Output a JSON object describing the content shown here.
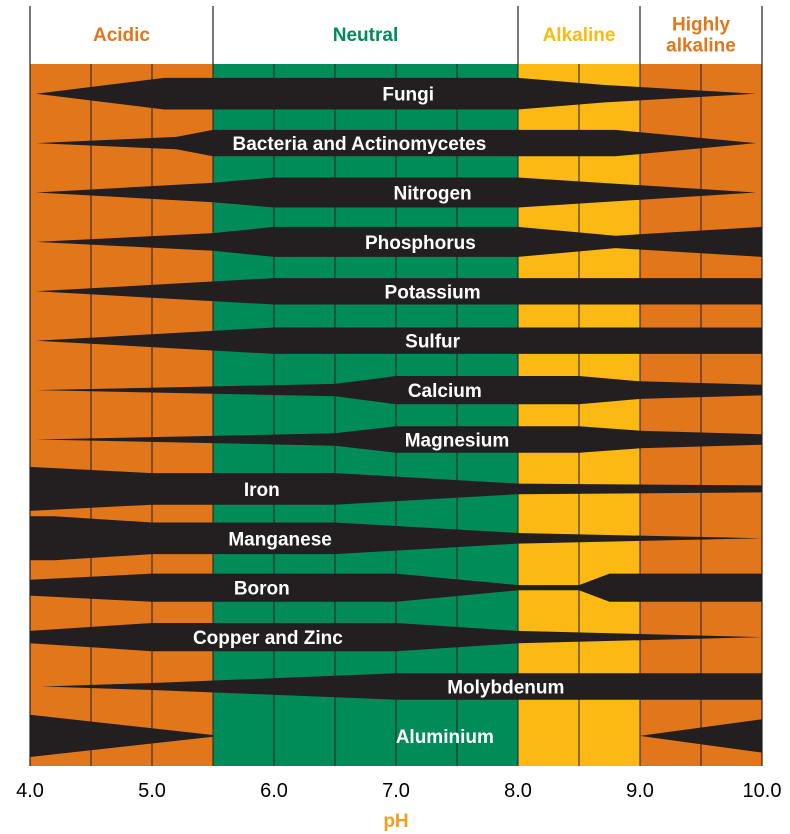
{
  "chart_data": {
    "type": "bar",
    "xlabel": "pH",
    "xlim": [
      4.0,
      10.0
    ],
    "ticks": [
      "4.0",
      "5.0",
      "6.0",
      "7.0",
      "8.0",
      "9.0",
      "10.0"
    ],
    "tick_values": [
      4.0,
      5.0,
      6.0,
      7.0,
      8.0,
      9.0,
      10.0
    ],
    "gridlines": [
      4.5,
      5.0,
      5.5,
      6.0,
      6.5,
      7.0,
      7.5,
      8.0,
      8.5,
      9.0,
      9.5
    ],
    "zones": [
      {
        "name": "Acidic",
        "from": 4.0,
        "to": 5.5,
        "color": "#e2761b",
        "title_color": "#e2761b"
      },
      {
        "name": "Neutral",
        "from": 5.5,
        "to": 8.0,
        "color": "#008c59",
        "title_color": "#008c59"
      },
      {
        "name": "Alkaline",
        "from": 8.0,
        "to": 9.0,
        "color": "#fdb913",
        "title_color": "#fdb913"
      },
      {
        "name": "Highly\nalkaline",
        "from": 9.0,
        "to": 10.0,
        "color": "#e2761b",
        "title_color": "#e2761b"
      }
    ],
    "bar_color": "#231f20",
    "axis_title_color": "#f0a020",
    "series": [
      {
        "name": "Fungi",
        "label_at": 7.1,
        "profile": [
          [
            4.05,
            0
          ],
          [
            5.1,
            0.36
          ],
          [
            8.0,
            0.36
          ],
          [
            8.7,
            0.2
          ],
          [
            9.95,
            0
          ]
        ]
      },
      {
        "name": "Bacteria and Actinomycetes",
        "label_at": 6.7,
        "profile": [
          [
            4.05,
            0
          ],
          [
            5.2,
            0.14
          ],
          [
            5.5,
            0.3
          ],
          [
            7.5,
            0.3
          ],
          [
            8.5,
            0.3
          ],
          [
            8.8,
            0.3
          ],
          [
            9.95,
            0
          ]
        ]
      },
      {
        "name": "Nitrogen",
        "label_at": 7.3,
        "profile": [
          [
            4.05,
            0
          ],
          [
            5.5,
            0.22
          ],
          [
            6.0,
            0.34
          ],
          [
            8.0,
            0.34
          ],
          [
            8.8,
            0.2
          ],
          [
            9.95,
            0
          ]
        ]
      },
      {
        "name": "Phosphorus",
        "label_at": 7.2,
        "profile": [
          [
            4.05,
            0
          ],
          [
            5.5,
            0.2
          ],
          [
            6.0,
            0.34
          ],
          [
            8.0,
            0.34
          ],
          [
            8.8,
            0.14
          ],
          [
            10.0,
            0.34
          ]
        ]
      },
      {
        "name": "Potassium",
        "label_at": 7.3,
        "profile": [
          [
            4.05,
            0
          ],
          [
            6.0,
            0.3
          ],
          [
            8.0,
            0.3
          ],
          [
            10.0,
            0.3
          ]
        ]
      },
      {
        "name": "Sulfur",
        "label_at": 7.3,
        "profile": [
          [
            4.05,
            0
          ],
          [
            6.0,
            0.3
          ],
          [
            8.0,
            0.3
          ],
          [
            10.0,
            0.3
          ]
        ]
      },
      {
        "name": "Calcium",
        "label_at": 7.4,
        "profile": [
          [
            4.05,
            0
          ],
          [
            6.5,
            0.14
          ],
          [
            7.0,
            0.32
          ],
          [
            8.5,
            0.32
          ],
          [
            9.0,
            0.2
          ],
          [
            10.0,
            0.12
          ]
        ]
      },
      {
        "name": "Magnesium",
        "label_at": 7.5,
        "profile": [
          [
            4.05,
            0
          ],
          [
            6.5,
            0.14
          ],
          [
            7.0,
            0.3
          ],
          [
            8.5,
            0.3
          ],
          [
            9.0,
            0.2
          ],
          [
            10.0,
            0.12
          ]
        ]
      },
      {
        "name": "Iron",
        "label_at": 5.9,
        "profile": [
          [
            4.0,
            0.5
          ],
          [
            5.0,
            0.36
          ],
          [
            6.5,
            0.36
          ],
          [
            8.0,
            0.12
          ],
          [
            10.0,
            0.08
          ]
        ]
      },
      {
        "name": "Manganese",
        "label_at": 6.05,
        "profile": [
          [
            4.0,
            0.5
          ],
          [
            4.2,
            0.5
          ],
          [
            5.0,
            0.36
          ],
          [
            6.5,
            0.36
          ],
          [
            8.0,
            0.12
          ],
          [
            10.0,
            0.0
          ]
        ]
      },
      {
        "name": "Boron",
        "label_at": 5.9,
        "profile": [
          [
            4.0,
            0.18
          ],
          [
            5.0,
            0.32
          ],
          [
            7.0,
            0.32
          ],
          [
            8.0,
            0.06
          ],
          [
            8.5,
            0.06
          ],
          [
            8.75,
            0.32
          ],
          [
            10.0,
            0.32
          ]
        ]
      },
      {
        "name": "Copper and Zinc",
        "label_at": 5.95,
        "profile": [
          [
            4.0,
            0.14
          ],
          [
            5.0,
            0.32
          ],
          [
            7.0,
            0.32
          ],
          [
            8.0,
            0.14
          ],
          [
            10.0,
            0.0
          ]
        ]
      },
      {
        "name": "Molybdenum",
        "label_at": 7.9,
        "profile": [
          [
            4.1,
            0
          ],
          [
            5.0,
            0.08
          ],
          [
            7.0,
            0.3
          ],
          [
            10.0,
            0.3
          ]
        ]
      },
      {
        "name": "Aluminium",
        "label_at": 7.4,
        "profile": [
          [
            4.0,
            0.48
          ],
          [
            5.5,
            0.02
          ],
          [
            5.5,
            0.0
          ],
          [
            9.0,
            0.0
          ],
          [
            9.05,
            0.02
          ],
          [
            10.0,
            0.38
          ]
        ]
      }
    ]
  }
}
